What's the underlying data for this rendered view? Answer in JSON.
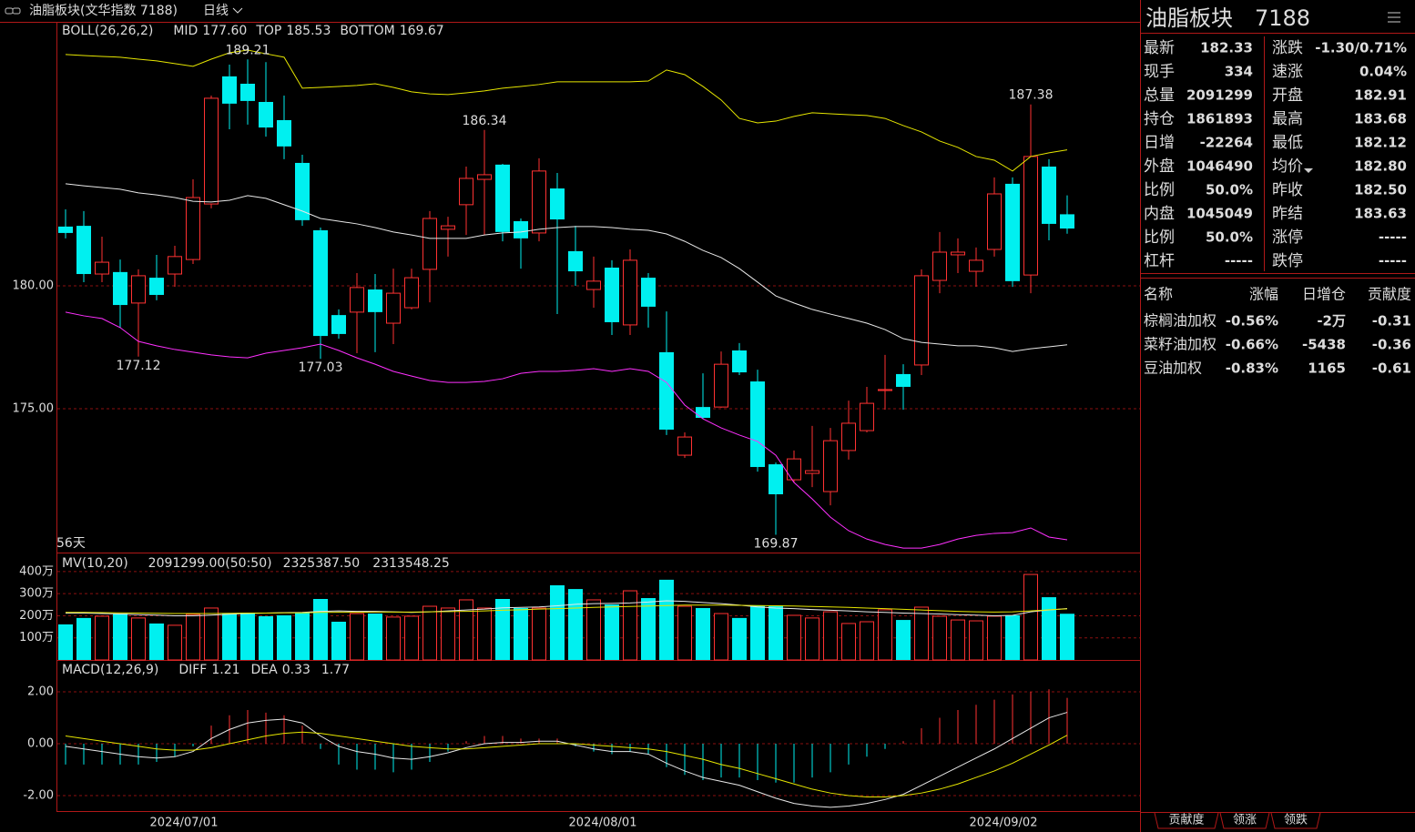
{
  "header": {
    "title": "油脂板块(文华指数 7188)",
    "period": "日线"
  },
  "chart_data": [
    {
      "type": "candlestick",
      "title": "BOLL(26,26,2)",
      "period_label": "56天",
      "up_color": "#ff3232",
      "down_color": "#00f0f0",
      "grid": true,
      "categories": [
        null,
        null,
        null,
        null,
        null,
        null,
        null,
        "2024/07/01",
        null,
        null,
        null,
        null,
        null,
        null,
        null,
        null,
        null,
        null,
        null,
        null,
        null,
        null,
        null,
        null,
        null,
        null,
        null,
        null,
        null,
        null,
        "2024/08/01",
        null,
        null,
        null,
        null,
        null,
        null,
        null,
        null,
        null,
        null,
        null,
        null,
        null,
        null,
        null,
        null,
        null,
        null,
        null,
        null,
        null,
        "2024/09/02",
        null,
        null,
        null
      ],
      "open": [
        182.41,
        182.44,
        180.48,
        180.56,
        179.3,
        180.33,
        180.48,
        181.07,
        183.33,
        188.52,
        188.22,
        187.48,
        186.74,
        185.0,
        182.26,
        178.81,
        178.93,
        179.85,
        178.48,
        179.11,
        180.67,
        182.3,
        183.3,
        184.33,
        184.93,
        182.63,
        182.15,
        183.96,
        181.41,
        179.85,
        180.74,
        178.41,
        180.33,
        177.3,
        173.11,
        175.07,
        175.07,
        177.37,
        176.11,
        172.74,
        172.11,
        172.37,
        171.63,
        173.3,
        174.11,
        175.74,
        176.41,
        176.78,
        180.22,
        181.26,
        180.59,
        181.48,
        184.15,
        180.44,
        184.85,
        182.91
      ],
      "high": [
        183.11,
        183.04,
        182.0,
        181.07,
        180.67,
        181.26,
        181.63,
        184.33,
        187.74,
        189.0,
        189.21,
        189.1,
        187.74,
        185.33,
        182.37,
        179.04,
        180.52,
        180.48,
        180.7,
        180.7,
        183.04,
        182.81,
        184.85,
        186.34,
        184.96,
        182.74,
        185.19,
        184.59,
        182.44,
        181.19,
        181.04,
        181.48,
        180.52,
        178.96,
        174.04,
        176.44,
        177.33,
        177.67,
        176.59,
        172.81,
        173.3,
        174.3,
        174.22,
        175.33,
        175.89,
        177.19,
        176.81,
        180.67,
        182.19,
        181.93,
        181.56,
        184.41,
        184.41,
        187.38,
        185.15,
        183.68
      ],
      "low": [
        181.93,
        180.15,
        180.15,
        178.3,
        177.12,
        179.41,
        179.96,
        180.89,
        183.15,
        186.37,
        186.56,
        186.07,
        185.15,
        182.44,
        177.03,
        177.85,
        177.26,
        177.3,
        177.63,
        179.04,
        179.33,
        181.19,
        182.07,
        182.07,
        181.81,
        180.7,
        181.81,
        178.85,
        180.0,
        179.11,
        178.0,
        178.0,
        178.3,
        173.93,
        173.0,
        174.59,
        175.04,
        176.37,
        172.44,
        169.87,
        172.0,
        171.81,
        171.07,
        172.93,
        174.04,
        174.96,
        174.96,
        176.37,
        179.7,
        180.52,
        179.96,
        181.19,
        179.96,
        179.7,
        181.85,
        182.12
      ],
      "close": [
        182.15,
        180.48,
        180.96,
        179.22,
        180.41,
        179.63,
        181.19,
        183.59,
        187.63,
        187.41,
        187.52,
        186.44,
        185.67,
        182.67,
        177.96,
        178.04,
        179.93,
        178.93,
        179.7,
        180.33,
        182.74,
        182.44,
        184.37,
        184.52,
        182.19,
        181.93,
        184.67,
        182.7,
        180.59,
        180.19,
        178.52,
        181.04,
        179.15,
        174.15,
        173.85,
        174.63,
        176.81,
        176.48,
        172.63,
        171.52,
        172.96,
        172.48,
        173.7,
        174.41,
        175.22,
        175.78,
        175.89,
        180.41,
        181.37,
        181.37,
        181.04,
        183.74,
        180.19,
        185.26,
        182.52,
        182.33
      ],
      "series": [
        {
          "name": "MID",
          "readout": "177.60",
          "color": "#e8e8e8",
          "values": [
            184.15,
            184.07,
            184.0,
            183.93,
            183.78,
            183.7,
            183.59,
            183.44,
            183.41,
            183.48,
            183.67,
            183.56,
            183.3,
            183.04,
            182.74,
            182.63,
            182.52,
            182.37,
            182.19,
            182.07,
            181.93,
            181.93,
            181.93,
            182.07,
            182.15,
            182.19,
            182.3,
            182.37,
            182.41,
            182.41,
            182.37,
            182.3,
            182.26,
            182.11,
            181.81,
            181.44,
            181.15,
            180.7,
            180.15,
            179.59,
            179.3,
            179.04,
            178.85,
            178.67,
            178.48,
            178.22,
            177.85,
            177.7,
            177.63,
            177.56,
            177.56,
            177.48,
            177.33,
            177.44,
            177.52,
            177.6
          ]
        },
        {
          "name": "TOP",
          "readout": "185.53",
          "color": "#e6e600",
          "values": [
            189.41,
            189.37,
            189.33,
            189.3,
            189.22,
            189.15,
            189.04,
            188.93,
            189.22,
            189.48,
            189.59,
            189.44,
            189.3,
            188.04,
            188.07,
            188.11,
            188.15,
            188.22,
            188.07,
            187.89,
            187.81,
            187.78,
            187.85,
            187.93,
            188.04,
            188.11,
            188.19,
            188.3,
            188.3,
            188.3,
            188.3,
            188.3,
            188.33,
            188.78,
            188.59,
            188.11,
            187.56,
            186.81,
            186.63,
            186.7,
            186.89,
            187.04,
            187.0,
            186.96,
            186.93,
            186.81,
            186.52,
            186.26,
            185.89,
            185.63,
            185.26,
            185.11,
            184.67,
            185.26,
            185.41,
            185.53
          ]
        },
        {
          "name": "BOTTOM",
          "readout": "169.67",
          "color": "#ff30ff",
          "values": [
            178.93,
            178.78,
            178.67,
            178.3,
            177.74,
            177.56,
            177.41,
            177.3,
            177.19,
            177.11,
            177.07,
            177.26,
            177.37,
            177.48,
            177.63,
            177.37,
            177.07,
            176.81,
            176.52,
            176.33,
            176.15,
            176.07,
            176.07,
            176.11,
            176.22,
            176.44,
            176.52,
            176.52,
            176.56,
            176.63,
            176.52,
            176.63,
            176.52,
            176.07,
            175.15,
            174.59,
            174.22,
            173.93,
            173.67,
            173.11,
            172.0,
            171.33,
            170.59,
            170.04,
            169.7,
            169.48,
            169.33,
            169.33,
            169.48,
            169.7,
            169.85,
            169.93,
            169.96,
            170.15,
            169.78,
            169.67
          ]
        }
      ],
      "ylim": [
        169.15,
        190.59
      ],
      "yticks": [
        {
          "value": 180,
          "label": "180.00"
        },
        {
          "value": 175,
          "label": "175.00"
        }
      ]
    },
    {
      "type": "bar",
      "title": "MV(10,20)",
      "readout": "2091299.00(50:50)",
      "grid": true,
      "values": [
        161,
        190,
        198,
        210,
        190,
        165,
        157,
        206,
        235,
        210,
        214,
        198,
        202,
        214,
        276,
        173,
        210,
        210,
        194,
        198,
        243,
        235,
        272,
        235,
        276,
        235,
        235,
        338,
        321,
        272,
        251,
        313,
        280,
        363,
        243,
        235,
        210,
        190,
        247,
        247,
        202,
        190,
        218,
        165,
        173,
        227,
        181,
        239,
        198,
        181,
        177,
        198,
        202,
        387,
        284,
        209.13
      ],
      "series": [
        {
          "readout": "2325387.50",
          "color": "#e8e8e8",
          "values": [
            212,
            212,
            210,
            208,
            205,
            203,
            200,
            200,
            203,
            207,
            210,
            212,
            214,
            215,
            220,
            222,
            220,
            220,
            218,
            215,
            218,
            222,
            226,
            230,
            236,
            238,
            240,
            245,
            252,
            255,
            256,
            258,
            262,
            268,
            265,
            260,
            255,
            248,
            240,
            235,
            232,
            228,
            225,
            222,
            218,
            215,
            212,
            210,
            208,
            205,
            203,
            200,
            202,
            218,
            226,
            232.54
          ]
        },
        {
          "readout": "2313548.25",
          "color": "#e6e600",
          "values": [
            215,
            215,
            214,
            213,
            212,
            211,
            210,
            210,
            210,
            211,
            212,
            212,
            213,
            213,
            215,
            216,
            216,
            217,
            217,
            217,
            218,
            219,
            220,
            222,
            225,
            227,
            230,
            232,
            235,
            238,
            240,
            242,
            244,
            246,
            248,
            248,
            248,
            247,
            246,
            245,
            244,
            242,
            240,
            238,
            235,
            232,
            229,
            226,
            223,
            220,
            218,
            217,
            218,
            222,
            227,
            231.35
          ]
        }
      ],
      "ylim": [
        0,
        482
      ],
      "yticks": [
        {
          "value": 100,
          "label": "100万"
        },
        {
          "value": 200,
          "label": "200万"
        },
        {
          "value": 300,
          "label": "300万"
        },
        {
          "value": 400,
          "label": "400万"
        }
      ]
    },
    {
      "type": "line",
      "title": "MACD(12,26,9)",
      "readout": "1.77",
      "grid": true,
      "up_color": "#ff3232",
      "down_color": "#00f0f0",
      "values": [
        -0.8,
        -0.8,
        -0.8,
        -0.8,
        -0.8,
        -0.7,
        -0.5,
        -0.1,
        0.7,
        1.1,
        1.3,
        1.2,
        1.1,
        0.7,
        -0.2,
        -0.8,
        -1.0,
        -1.0,
        -1.1,
        -1.0,
        -0.7,
        -0.3,
        0.1,
        0.3,
        0.3,
        0.2,
        0.2,
        0.2,
        -0.1,
        -0.3,
        -0.4,
        -0.3,
        -0.4,
        -0.9,
        -1.2,
        -1.4,
        -1.3,
        -1.3,
        -1.4,
        -1.5,
        -1.5,
        -1.3,
        -1.1,
        -0.8,
        -0.5,
        -0.2,
        0.1,
        0.6,
        1.0,
        1.3,
        1.5,
        1.7,
        1.9,
        2.0,
        2.1,
        1.77
      ],
      "series": [
        {
          "name": "DIFF",
          "readout": "1.21",
          "color": "#e8e8e8",
          "values": [
            -0.1,
            -0.2,
            -0.3,
            -0.4,
            -0.5,
            -0.55,
            -0.5,
            -0.3,
            0.2,
            0.55,
            0.8,
            0.9,
            0.95,
            0.8,
            0.3,
            -0.1,
            -0.3,
            -0.4,
            -0.55,
            -0.6,
            -0.5,
            -0.35,
            -0.15,
            0.0,
            0.05,
            0.05,
            0.1,
            0.1,
            -0.05,
            -0.2,
            -0.3,
            -0.3,
            -0.4,
            -0.75,
            -1.05,
            -1.3,
            -1.45,
            -1.6,
            -1.85,
            -2.1,
            -2.3,
            -2.4,
            -2.45,
            -2.4,
            -2.3,
            -2.15,
            -1.95,
            -1.6,
            -1.25,
            -0.9,
            -0.55,
            -0.2,
            0.2,
            0.6,
            1.0,
            1.21
          ]
        },
        {
          "name": "DEA",
          "readout": "0.33",
          "color": "#e6e600",
          "values": [
            0.3,
            0.2,
            0.1,
            0.0,
            -0.1,
            -0.2,
            -0.25,
            -0.25,
            -0.15,
            0.0,
            0.15,
            0.3,
            0.4,
            0.45,
            0.4,
            0.3,
            0.2,
            0.1,
            0.0,
            -0.1,
            -0.15,
            -0.2,
            -0.2,
            -0.15,
            -0.1,
            -0.05,
            0.0,
            0.0,
            0.0,
            -0.05,
            -0.1,
            -0.15,
            -0.2,
            -0.3,
            -0.45,
            -0.6,
            -0.8,
            -0.95,
            -1.15,
            -1.35,
            -1.55,
            -1.75,
            -1.9,
            -2.0,
            -2.05,
            -2.05,
            -2.0,
            -1.9,
            -1.75,
            -1.55,
            -1.3,
            -1.05,
            -0.75,
            -0.4,
            -0.05,
            0.33
          ]
        }
      ],
      "ylim": [
        -2.56,
        3.16
      ],
      "yticks": [
        {
          "value": 2,
          "label": "2.00"
        },
        {
          "value": 0,
          "label": "0.00"
        },
        {
          "value": -2,
          "label": "-2.00"
        }
      ]
    }
  ],
  "quote": {
    "name": "油脂板块",
    "code": "7188",
    "rows": [
      [
        {
          "label": "最新",
          "value": "182.33",
          "color": "#20e020"
        },
        {
          "label": "涨跌",
          "value": "-1.30/0.71%",
          "color": "#20e020"
        }
      ],
      [
        {
          "label": "现手",
          "value": "334",
          "color": "#e6e600"
        },
        {
          "label": "速涨",
          "value": "0.04%",
          "color": "#ff3232"
        }
      ],
      [
        {
          "label": "总量",
          "value": "2091299",
          "color": "#e6e600"
        },
        {
          "label": "开盘",
          "value": "182.91",
          "color": "#20e020"
        }
      ],
      [
        {
          "label": "持仓",
          "value": "1861893",
          "color": "#e6e600"
        },
        {
          "label": "最高",
          "value": "183.68",
          "color": "#ff3232"
        }
      ],
      [
        {
          "label": "日增",
          "value": "-22264",
          "color": "#e6e600"
        },
        {
          "label": "最低",
          "value": "182.12",
          "color": "#20e020"
        }
      ],
      [
        {
          "label": "外盘",
          "value": "1046490",
          "color": "#e6e600"
        },
        {
          "label": "均价",
          "value": "182.80",
          "color": "#20e020"
        }
      ],
      [
        {
          "label": "比例",
          "value": "50.0%",
          "color": "#e6e600"
        },
        {
          "label": "昨收",
          "value": "182.50",
          "color": "#ffffff"
        }
      ],
      [
        {
          "label": "内盘",
          "value": "1045049",
          "color": "#e6e600"
        },
        {
          "label": "昨结",
          "value": "183.63",
          "color": "#ffffff"
        }
      ],
      [
        {
          "label": "比例",
          "value": "50.0%",
          "color": "#e6e600"
        },
        {
          "label": "涨停",
          "value": "-----",
          "color": "#ff3232"
        }
      ],
      [
        {
          "label": "杠杆",
          "value": "-----",
          "color": "#e6e600"
        },
        {
          "label": "跌停",
          "value": "-----",
          "color": "#20e020"
        }
      ]
    ]
  },
  "components": {
    "columns": [
      "名称",
      "涨幅",
      "日增仓",
      "贡献度"
    ],
    "colors": [
      "#ffffff",
      "#20e020",
      "#e6e600",
      "#20e020"
    ],
    "rows": [
      [
        "棕榈油加权",
        "-0.56%",
        "-2万",
        "-0.31"
      ],
      [
        "菜籽油加权",
        "-0.66%",
        "-5438",
        "-0.36"
      ],
      [
        "豆油加权",
        "-0.83%",
        "1165",
        "-0.61"
      ]
    ]
  },
  "tabs": [
    "贡献度",
    "领涨",
    "领跌"
  ]
}
